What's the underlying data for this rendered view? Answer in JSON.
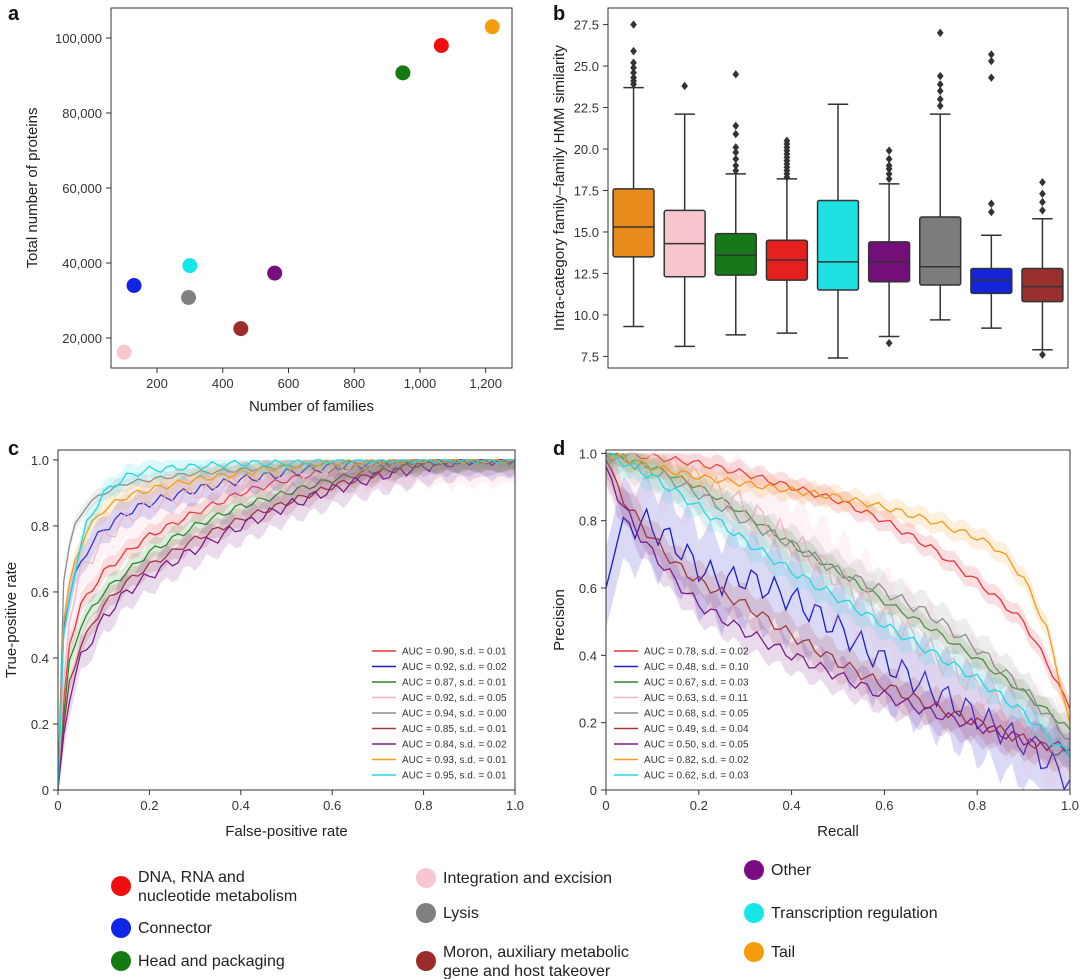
{
  "categories": [
    {
      "key": "dna",
      "lines": [
        "DNA, RNA and",
        "nucleotide metabolism"
      ],
      "color": "#f00e0e"
    },
    {
      "key": "connector",
      "lines": [
        "Connector"
      ],
      "color": "#1024e6"
    },
    {
      "key": "head",
      "lines": [
        "Head and packaging"
      ],
      "color": "#137a10"
    },
    {
      "key": "integration",
      "lines": [
        "Integration and excision"
      ],
      "color": "#f7c6cf"
    },
    {
      "key": "lysis",
      "lines": [
        "Lysis"
      ],
      "color": "#808080"
    },
    {
      "key": "moron",
      "lines": [
        "Moron, auxiliary metabolic",
        "gene and host takeover"
      ],
      "color": "#9c2b2b"
    },
    {
      "key": "other",
      "lines": [
        "Other"
      ],
      "color": "#7a0c82"
    },
    {
      "key": "transcription",
      "lines": [
        "Transcription regulation"
      ],
      "color": "#16e6e8"
    },
    {
      "key": "tail",
      "lines": [
        "Tail"
      ],
      "color": "#f59d0e"
    }
  ],
  "chart_data": [
    {
      "id": "a",
      "panel_label": "a",
      "type": "scatter",
      "xlabel": "Number of families",
      "ylabel": "Total number of proteins",
      "xlim": [
        60,
        1280
      ],
      "ylim": [
        12000,
        108000
      ],
      "xticks": [
        200,
        400,
        600,
        800,
        1000,
        1200
      ],
      "xtick_labels": [
        "200",
        "400",
        "600",
        "800",
        "1,000",
        "1,200"
      ],
      "yticks": [
        20000,
        40000,
        60000,
        80000,
        100000
      ],
      "ytick_labels": [
        "20,000",
        "40,000",
        "60,000",
        "80,000",
        "100,000"
      ],
      "points": [
        {
          "category": "DNA, RNA and nucleotide metabolism",
          "x": 1065,
          "y": 98000,
          "color": "#f00e0e"
        },
        {
          "category": "Connector",
          "x": 130,
          "y": 34000,
          "color": "#1024e6"
        },
        {
          "category": "Head and packaging",
          "x": 948,
          "y": 90700,
          "color": "#137a10"
        },
        {
          "category": "Integration and excision",
          "x": 100,
          "y": 16200,
          "color": "#f7c6cf"
        },
        {
          "category": "Lysis",
          "x": 296,
          "y": 30800,
          "color": "#808080"
        },
        {
          "category": "Moron, auxiliary metabolic gene and host takeover",
          "x": 455,
          "y": 22500,
          "color": "#9c2b2b"
        },
        {
          "category": "Other",
          "x": 558,
          "y": 37300,
          "color": "#7a0c82"
        },
        {
          "category": "Transcription regulation",
          "x": 300,
          "y": 39300,
          "color": "#16e6e8"
        },
        {
          "category": "Tail",
          "x": 1220,
          "y": 103000,
          "color": "#f59d0e"
        }
      ]
    },
    {
      "id": "b",
      "panel_label": "b",
      "type": "box",
      "xlabel": "",
      "ylabel": "Intra-category family–family HMM similarity",
      "ylim": [
        6.8,
        28.5
      ],
      "yticks": [
        7.5,
        10.0,
        12.5,
        15.0,
        17.5,
        20.0,
        22.5,
        25.0,
        27.5
      ],
      "ytick_labels": [
        "7.5",
        "10.0",
        "12.5",
        "15.0",
        "17.5",
        "20.0",
        "22.5",
        "25.0",
        "27.5"
      ],
      "boxes": [
        {
          "category": "Tail",
          "color": "#e88b1c",
          "whisker_low": 9.3,
          "q1": 13.5,
          "median": 15.3,
          "q3": 17.6,
          "whisker_high": 23.7,
          "outliers": [
            23.9,
            24.1,
            24.3,
            24.6,
            24.9,
            25.2,
            25.9,
            27.5
          ]
        },
        {
          "category": "Integration and excision",
          "color": "#f7c5cc",
          "whisker_low": 8.1,
          "q1": 12.3,
          "median": 14.3,
          "q3": 16.3,
          "whisker_high": 22.1,
          "outliers": [
            23.8
          ]
        },
        {
          "category": "Head and packaging",
          "color": "#17781a",
          "whisker_low": 8.8,
          "q1": 12.4,
          "median": 13.6,
          "q3": 14.9,
          "whisker_high": 18.5,
          "outliers": [
            18.7,
            19.0,
            19.4,
            19.8,
            20.1,
            20.9,
            21.4,
            24.5
          ]
        },
        {
          "category": "DNA, RNA and nucleotide metabolism",
          "color": "#e61f1f",
          "whisker_low": 8.9,
          "q1": 12.1,
          "median": 13.3,
          "q3": 14.5,
          "whisker_high": 18.2,
          "outliers": [
            18.3,
            18.5,
            18.7,
            18.9,
            19.1,
            19.3,
            19.5,
            19.7,
            19.9,
            20.1,
            20.3,
            20.5
          ]
        },
        {
          "category": "Transcription regulation",
          "color": "#1ee0e0",
          "whisker_low": 7.4,
          "q1": 11.5,
          "median": 13.2,
          "q3": 16.9,
          "whisker_high": 22.7,
          "outliers": []
        },
        {
          "category": "Other",
          "color": "#740e7a",
          "whisker_low": 8.7,
          "q1": 12.0,
          "median": 13.2,
          "q3": 14.4,
          "whisker_high": 17.9,
          "outliers": [
            8.3,
            18.2,
            18.5,
            18.8,
            19.0,
            19.4,
            19.9
          ]
        },
        {
          "category": "Lysis",
          "color": "#7c7c7c",
          "whisker_low": 9.7,
          "q1": 11.8,
          "median": 12.9,
          "q3": 15.9,
          "whisker_high": 22.1,
          "outliers": [
            22.6,
            23.0,
            23.5,
            23.9,
            24.4,
            27.0
          ]
        },
        {
          "category": "Connector",
          "color": "#1524d8",
          "whisker_low": 9.2,
          "q1": 11.3,
          "median": 12.1,
          "q3": 12.8,
          "whisker_high": 14.8,
          "outliers": [
            16.2,
            16.7,
            24.3,
            25.3,
            25.7
          ]
        },
        {
          "category": "Moron, auxiliary metabolic gene and host takeover",
          "color": "#9a2f2f",
          "whisker_low": 7.9,
          "q1": 10.8,
          "median": 11.7,
          "q3": 12.8,
          "whisker_high": 15.8,
          "outliers": [
            7.6,
            16.3,
            16.8,
            17.3,
            18.0
          ]
        }
      ]
    },
    {
      "id": "c",
      "panel_label": "c",
      "type": "line",
      "xlabel": "False-positive rate",
      "ylabel": "True-positive rate",
      "xlim": [
        0,
        1
      ],
      "ylim": [
        0,
        1.03
      ],
      "xticks": [
        0,
        0.2,
        0.4,
        0.6,
        0.8,
        1.0
      ],
      "xtick_labels": [
        "0",
        "0.2",
        "0.4",
        "0.6",
        "0.8",
        "1.0"
      ],
      "yticks": [
        0,
        0.2,
        0.4,
        0.6,
        0.8,
        1.0
      ],
      "ytick_labels": [
        "0",
        "0.2",
        "0.4",
        "0.6",
        "0.8",
        "1.0"
      ],
      "legend_position": "lower-right",
      "series": [
        {
          "name": "AUC = 0.90, s.d. = 0.01",
          "color": "#e8333a",
          "x": [
            0,
            0.02,
            0.05,
            0.1,
            0.15,
            0.2,
            0.3,
            0.4,
            0.5,
            0.6,
            0.7,
            0.8,
            0.9,
            1.0
          ],
          "y": [
            0,
            0.42,
            0.56,
            0.66,
            0.72,
            0.77,
            0.84,
            0.9,
            0.94,
            0.97,
            0.99,
            1.0,
            1.0,
            1.0
          ],
          "sd": 0.03
        },
        {
          "name": "AUC = 0.92, s.d. = 0.02",
          "color": "#1b1bcf",
          "x": [
            0,
            0.01,
            0.03,
            0.06,
            0.1,
            0.15,
            0.2,
            0.3,
            0.4,
            0.5,
            0.6,
            0.7,
            0.8,
            1.0
          ],
          "y": [
            0,
            0.48,
            0.62,
            0.72,
            0.79,
            0.84,
            0.87,
            0.91,
            0.94,
            0.96,
            0.98,
            0.99,
            1.0,
            1.0
          ],
          "sd": 0.04
        },
        {
          "name": "AUC = 0.87, s.d. = 0.01",
          "color": "#2a8a2a",
          "x": [
            0,
            0.02,
            0.05,
            0.1,
            0.15,
            0.2,
            0.3,
            0.4,
            0.5,
            0.6,
            0.7,
            0.8,
            0.9,
            1.0
          ],
          "y": [
            0,
            0.36,
            0.5,
            0.6,
            0.66,
            0.72,
            0.8,
            0.86,
            0.9,
            0.94,
            0.97,
            0.99,
            1.0,
            1.0
          ],
          "sd": 0.03
        },
        {
          "name": "AUC = 0.92, s.d. = 0.05",
          "color": "#f3b6c4",
          "x": [
            0,
            0.02,
            0.05,
            0.1,
            0.15,
            0.2,
            0.3,
            0.4,
            0.5,
            0.6,
            0.7,
            0.8,
            1.0
          ],
          "y": [
            0,
            0.5,
            0.66,
            0.76,
            0.82,
            0.86,
            0.9,
            0.94,
            0.96,
            0.98,
            0.99,
            1.0,
            1.0
          ],
          "sd": 0.07
        },
        {
          "name": "AUC = 0.94, s.d. = 0.00",
          "color": "#8c8c8c",
          "x": [
            0,
            0.01,
            0.03,
            0.06,
            0.1,
            0.15,
            0.2,
            0.3,
            0.4,
            0.5,
            0.6,
            0.8,
            1.0
          ],
          "y": [
            0,
            0.62,
            0.78,
            0.86,
            0.9,
            0.93,
            0.94,
            0.96,
            0.97,
            0.98,
            0.99,
            1.0,
            1.0
          ],
          "sd": 0.02
        },
        {
          "name": "AUC = 0.85, s.d. = 0.01",
          "color": "#a23a3a",
          "x": [
            0,
            0.02,
            0.05,
            0.1,
            0.15,
            0.2,
            0.3,
            0.4,
            0.5,
            0.6,
            0.7,
            0.8,
            0.9,
            1.0
          ],
          "y": [
            0,
            0.3,
            0.44,
            0.56,
            0.63,
            0.68,
            0.76,
            0.82,
            0.87,
            0.92,
            0.96,
            0.99,
            1.0,
            1.0
          ],
          "sd": 0.03
        },
        {
          "name": "AUC = 0.84, s.d. = 0.02",
          "color": "#7a1e8a",
          "x": [
            0,
            0.02,
            0.05,
            0.1,
            0.15,
            0.2,
            0.3,
            0.4,
            0.5,
            0.6,
            0.7,
            0.8,
            0.9,
            1.0
          ],
          "y": [
            0,
            0.26,
            0.4,
            0.52,
            0.6,
            0.65,
            0.73,
            0.8,
            0.86,
            0.91,
            0.95,
            0.98,
            1.0,
            1.0
          ],
          "sd": 0.05
        },
        {
          "name": "AUC = 0.93, s.d. = 0.01",
          "color": "#f59a1a",
          "x": [
            0,
            0.01,
            0.03,
            0.06,
            0.1,
            0.15,
            0.2,
            0.3,
            0.4,
            0.5,
            0.6,
            0.8,
            1.0
          ],
          "y": [
            0,
            0.5,
            0.66,
            0.78,
            0.85,
            0.89,
            0.91,
            0.94,
            0.96,
            0.98,
            0.99,
            1.0,
            1.0
          ],
          "sd": 0.03
        },
        {
          "name": "AUC = 0.95, s.d. = 0.01",
          "color": "#22d8e0",
          "x": [
            0,
            0.01,
            0.03,
            0.06,
            0.1,
            0.15,
            0.2,
            0.3,
            0.4,
            0.5,
            0.6,
            0.8,
            1.0
          ],
          "y": [
            0,
            0.44,
            0.62,
            0.8,
            0.9,
            0.95,
            0.97,
            0.98,
            0.99,
            0.99,
            1.0,
            1.0,
            1.0
          ],
          "sd": 0.03
        }
      ]
    },
    {
      "id": "d",
      "panel_label": "d",
      "type": "line",
      "xlabel": "Recall",
      "ylabel": "Precision",
      "xlim": [
        0,
        1
      ],
      "ylim": [
        0,
        1.01
      ],
      "xticks": [
        0,
        0.2,
        0.4,
        0.6,
        0.8,
        1.0
      ],
      "xtick_labels": [
        "0",
        "0.2",
        "0.4",
        "0.6",
        "0.8",
        "1.0"
      ],
      "yticks": [
        0,
        0.2,
        0.4,
        0.6,
        0.8,
        1.0
      ],
      "ytick_labels": [
        "0",
        "0.2",
        "0.4",
        "0.6",
        "0.8",
        "1.0"
      ],
      "legend_position": "lower-left",
      "series": [
        {
          "name": "AUC = 0.78, s.d. = 0.02",
          "color": "#e8333a",
          "x": [
            0,
            0.1,
            0.2,
            0.3,
            0.4,
            0.5,
            0.6,
            0.7,
            0.8,
            0.9,
            0.95,
            1.0
          ],
          "y": [
            1.0,
            0.99,
            0.97,
            0.94,
            0.9,
            0.86,
            0.8,
            0.72,
            0.62,
            0.5,
            0.38,
            0.24
          ],
          "sd": 0.03
        },
        {
          "name": "AUC = 0.48, s.d. = 0.10",
          "color": "#1b1bcf",
          "x": [
            0,
            0.02,
            0.08,
            0.15,
            0.2,
            0.25,
            0.3,
            0.4,
            0.5,
            0.6,
            0.7,
            0.8,
            0.9,
            1.0
          ],
          "y": [
            0.6,
            0.76,
            0.8,
            0.73,
            0.66,
            0.62,
            0.63,
            0.57,
            0.48,
            0.38,
            0.3,
            0.22,
            0.14,
            0.03
          ],
          "sd": 0.12
        },
        {
          "name": "AUC = 0.67, s.d. = 0.03",
          "color": "#2a8a2a",
          "x": [
            0,
            0.1,
            0.2,
            0.3,
            0.4,
            0.5,
            0.6,
            0.7,
            0.8,
            0.9,
            1.0
          ],
          "y": [
            1.0,
            0.96,
            0.9,
            0.82,
            0.73,
            0.65,
            0.56,
            0.48,
            0.39,
            0.29,
            0.18
          ],
          "sd": 0.03
        },
        {
          "name": "AUC = 0.63, s.d. = 0.11",
          "color": "#f3b6c4",
          "x": [
            0,
            0.1,
            0.2,
            0.3,
            0.4,
            0.5,
            0.6,
            0.7,
            0.8,
            0.9,
            1.0
          ],
          "y": [
            1.0,
            0.98,
            0.92,
            0.84,
            0.74,
            0.63,
            0.52,
            0.41,
            0.3,
            0.2,
            0.1
          ],
          "sd": 0.12
        },
        {
          "name": "AUC = 0.68, s.d. = 0.05",
          "color": "#8c8c8c",
          "x": [
            0,
            0.1,
            0.2,
            0.3,
            0.4,
            0.5,
            0.6,
            0.7,
            0.8,
            0.9,
            1.0
          ],
          "y": [
            1.0,
            0.95,
            0.88,
            0.8,
            0.73,
            0.65,
            0.59,
            0.52,
            0.42,
            0.3,
            0.15
          ],
          "sd": 0.05
        },
        {
          "name": "AUC = 0.49, s.d. = 0.04",
          "color": "#a23a3a",
          "x": [
            0,
            0.03,
            0.08,
            0.15,
            0.2,
            0.3,
            0.4,
            0.5,
            0.6,
            0.7,
            0.8,
            0.9,
            1.0
          ],
          "y": [
            0.98,
            0.88,
            0.78,
            0.67,
            0.62,
            0.55,
            0.46,
            0.38,
            0.31,
            0.25,
            0.2,
            0.15,
            0.1
          ],
          "sd": 0.05
        },
        {
          "name": "AUC = 0.50, s.d. = 0.05",
          "color": "#7a1e8a",
          "x": [
            0,
            0.03,
            0.08,
            0.15,
            0.2,
            0.3,
            0.4,
            0.5,
            0.6,
            0.7,
            0.8,
            0.9,
            1.0
          ],
          "y": [
            0.96,
            0.86,
            0.74,
            0.62,
            0.55,
            0.47,
            0.4,
            0.34,
            0.28,
            0.23,
            0.19,
            0.15,
            0.12
          ],
          "sd": 0.05
        },
        {
          "name": "AUC = 0.82, s.d. = 0.02",
          "color": "#f59a1a",
          "x": [
            0,
            0.1,
            0.2,
            0.3,
            0.4,
            0.5,
            0.6,
            0.7,
            0.8,
            0.85,
            0.9,
            0.95,
            1.0
          ],
          "y": [
            1.0,
            0.96,
            0.93,
            0.91,
            0.89,
            0.87,
            0.84,
            0.8,
            0.75,
            0.71,
            0.63,
            0.48,
            0.2
          ],
          "sd": 0.03
        },
        {
          "name": "AUC = 0.62, s.d. = 0.03",
          "color": "#22d8e0",
          "x": [
            0,
            0.1,
            0.2,
            0.3,
            0.4,
            0.5,
            0.6,
            0.7,
            0.8,
            0.9,
            1.0
          ],
          "y": [
            1.0,
            0.93,
            0.84,
            0.74,
            0.65,
            0.57,
            0.49,
            0.41,
            0.33,
            0.23,
            0.1
          ],
          "sd": 0.04
        }
      ]
    }
  ]
}
